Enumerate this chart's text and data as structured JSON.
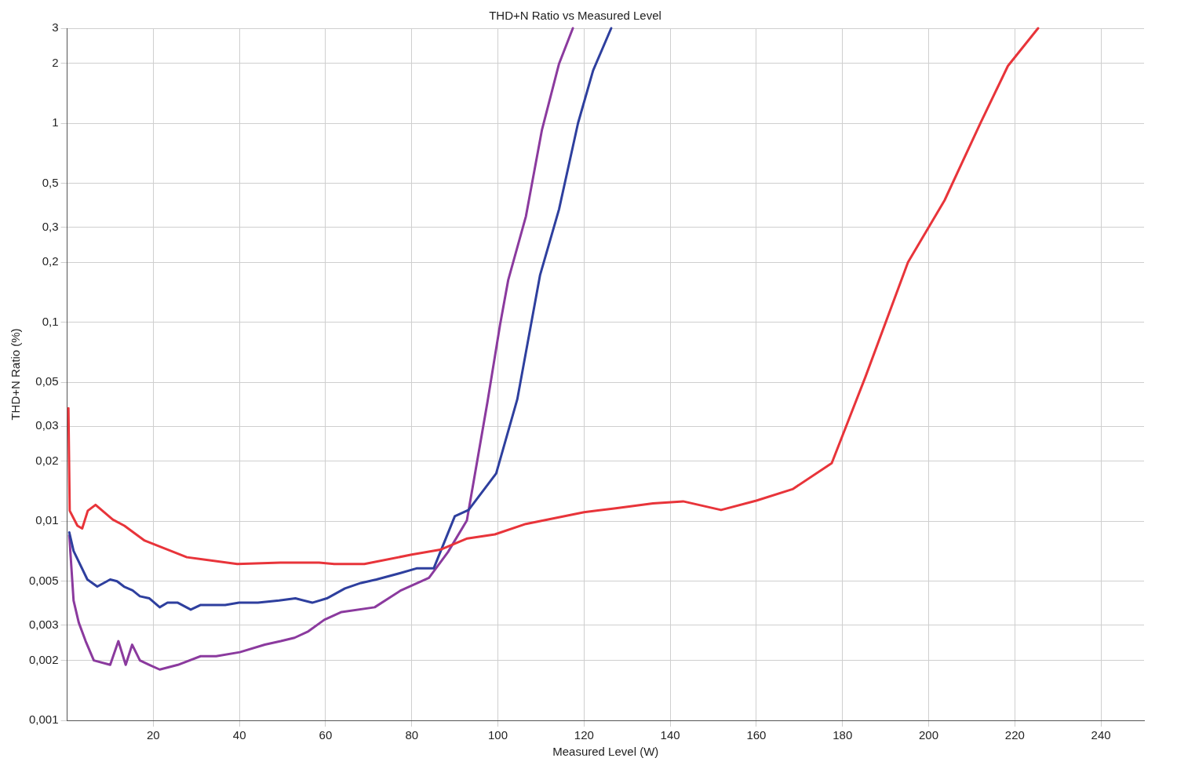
{
  "chart_data": {
    "type": "line",
    "title": "THD+N Ratio vs Measured Level",
    "xlabel": "Measured Level (W)",
    "ylabel": "THD+N Ratio (%)",
    "log": "y",
    "grid": true,
    "legend": false,
    "marker": "none",
    "line_style": "solid",
    "xlim": [
      0,
      250
    ],
    "xticks": [
      20,
      40,
      60,
      80,
      100,
      120,
      140,
      160,
      180,
      200,
      220,
      240
    ],
    "ylim": [
      0.001,
      3
    ],
    "yticks": [
      {
        "value": 0.001,
        "label": "0,001"
      },
      {
        "value": 0.002,
        "label": "0,002"
      },
      {
        "value": 0.003,
        "label": "0,003"
      },
      {
        "value": 0.005,
        "label": "0,005"
      },
      {
        "value": 0.01,
        "label": "0,01"
      },
      {
        "value": 0.02,
        "label": "0,02"
      },
      {
        "value": 0.03,
        "label": "0,03"
      },
      {
        "value": 0.05,
        "label": "0,05"
      },
      {
        "value": 0.1,
        "label": "0,1"
      },
      {
        "value": 0.2,
        "label": "0,2"
      },
      {
        "value": 0.3,
        "label": "0,3"
      },
      {
        "value": 0.5,
        "label": "0,5"
      },
      {
        "value": 1,
        "label": "1"
      },
      {
        "value": 2,
        "label": "2"
      },
      {
        "value": 3,
        "label": "3"
      }
    ],
    "series": [
      {
        "color": "#e8343a",
        "x": [
          0.3,
          0.6,
          2.4,
          3.5,
          4.8,
          6.6,
          10.6,
          13.3,
          18,
          27.8,
          39.5,
          49.5,
          58.5,
          62,
          69,
          80,
          86.6,
          92.9,
          99.3,
          106.5,
          120,
          127,
          136,
          143,
          151.8,
          160,
          168.4,
          177.5,
          185.3,
          195.2,
          203.7,
          212,
          218.4,
          225.4
        ],
        "values": [
          0.037,
          0.0113,
          0.0095,
          0.0092,
          0.0113,
          0.0121,
          0.0102,
          0.0095,
          0.008,
          0.0066,
          0.0061,
          0.0062,
          0.0062,
          0.0061,
          0.0061,
          0.0068,
          0.0072,
          0.0082,
          0.0086,
          0.0097,
          0.0111,
          0.0116,
          0.0123,
          0.0126,
          0.0114,
          0.0127,
          0.0145,
          0.0196,
          0.053,
          0.2,
          0.41,
          1.0,
          1.94,
          3.0
        ]
      },
      {
        "color": "#2e3f9e",
        "x": [
          0.5,
          1.5,
          4.7,
          7,
          10,
          11.6,
          13.2,
          15.2,
          16.9,
          19.1,
          21.5,
          23.3,
          25.7,
          28.7,
          31,
          36.7,
          39.9,
          44.3,
          49.2,
          53,
          56.9,
          60.3,
          64.5,
          68.2,
          71.8,
          77.4,
          81.1,
          85.1,
          90,
          93.2,
          99.6,
          104.5,
          109.8,
          114.2,
          118.6,
          122.1,
          126.3
        ],
        "values": [
          0.0088,
          0.0071,
          0.0051,
          0.0047,
          0.0051,
          0.005,
          0.0047,
          0.0045,
          0.0042,
          0.0041,
          0.0037,
          0.0039,
          0.0039,
          0.0036,
          0.0038,
          0.0038,
          0.0039,
          0.0039,
          0.004,
          0.0041,
          0.0039,
          0.0041,
          0.0046,
          0.0049,
          0.0051,
          0.0055,
          0.0058,
          0.0058,
          0.0106,
          0.0114,
          0.0174,
          0.041,
          0.173,
          0.37,
          1.0,
          1.84,
          3.0
        ]
      },
      {
        "color": "#8b3a9e",
        "x": [
          0.5,
          1.5,
          2.7,
          4.3,
          6.2,
          10,
          11.9,
          13.6,
          15.1,
          16.9,
          19.1,
          21.5,
          25.7,
          31,
          34.6,
          40.1,
          45.9,
          49.6,
          52.8,
          56,
          59.7,
          63.7,
          71.4,
          77.5,
          84,
          88.4,
          92.8,
          97.6,
          100.5,
          102.4,
          106.5,
          110.2,
          114.2,
          117.4
        ],
        "values": [
          0.0085,
          0.004,
          0.0031,
          0.0025,
          0.002,
          0.0019,
          0.0025,
          0.0019,
          0.0024,
          0.002,
          0.0019,
          0.0018,
          0.0019,
          0.0021,
          0.0021,
          0.0022,
          0.0024,
          0.0025,
          0.0026,
          0.0028,
          0.0032,
          0.0035,
          0.0037,
          0.0045,
          0.0052,
          0.007,
          0.0101,
          0.04,
          0.097,
          0.163,
          0.34,
          0.92,
          1.99,
          3.0
        ]
      }
    ]
  }
}
